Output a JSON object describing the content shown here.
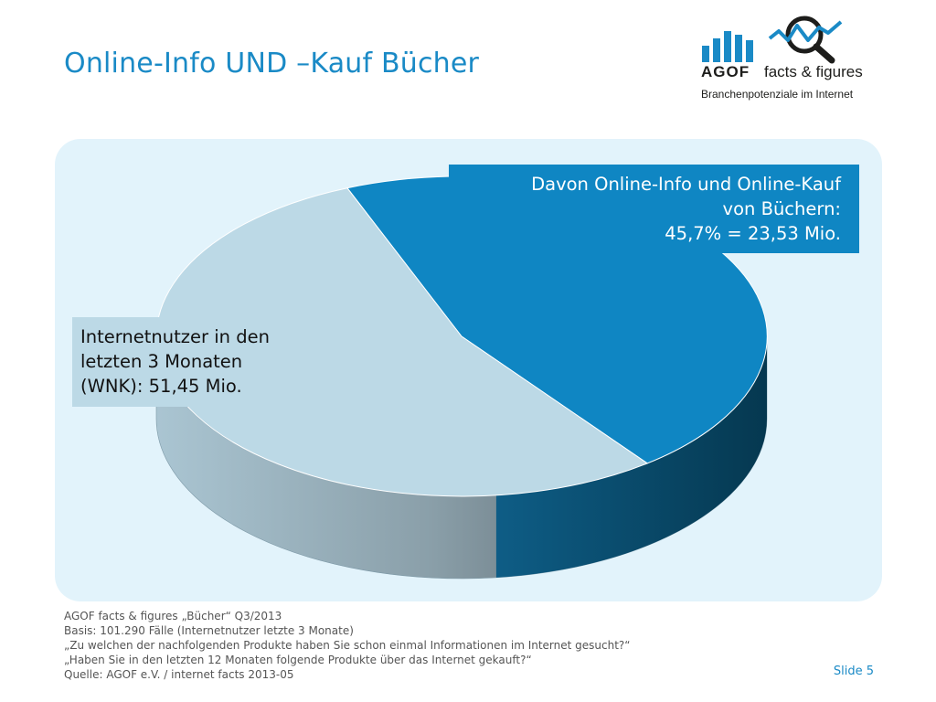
{
  "header": {
    "title": "Online-Info UND –Kauf Bücher"
  },
  "logo": {
    "brand": "AGOF",
    "tagline": "facts & figures",
    "subtitle": "Branchenpotenziale im Internet"
  },
  "colors": {
    "accent": "#1a8ac6",
    "panel_bg": "#e2f3fb",
    "slice_highlight": "#0f86c3",
    "slice_base": "#bcd9e6"
  },
  "chart_data": {
    "type": "pie",
    "title": "",
    "slices": [
      {
        "name": "Davon Online-Info und Online-Kauf von Büchern",
        "value": 45.7,
        "absolute": 23.53,
        "unit": "Mio."
      },
      {
        "name": "Internetnutzer in den letzten 3 Monaten (WNK)",
        "value": 54.3,
        "absolute": 51.45,
        "unit": "Mio."
      }
    ],
    "annotations": {
      "highlight": [
        "Davon Online-Info und Online-Kauf",
        "von Büchern:",
        "45,7% = 23,53 Mio."
      ],
      "base": [
        "Internetnutzer in den",
        "letzten 3 Monaten",
        "(WNK): 51,45 Mio."
      ]
    }
  },
  "footer": {
    "lines": [
      "AGOF facts & figures „Bücher“ Q3/2013",
      "Basis: 101.290 Fälle (Internetnutzer letzte 3 Monate)",
      "„Zu welchen der nachfolgenden Produkte haben Sie schon einmal Informationen im Internet gesucht?“",
      "„Haben Sie in den letzten 12 Monaten folgende Produkte über das Internet gekauft?“",
      "Quelle: AGOF e.V. / internet facts 2013-05"
    ],
    "slide_label": "Slide 5"
  }
}
